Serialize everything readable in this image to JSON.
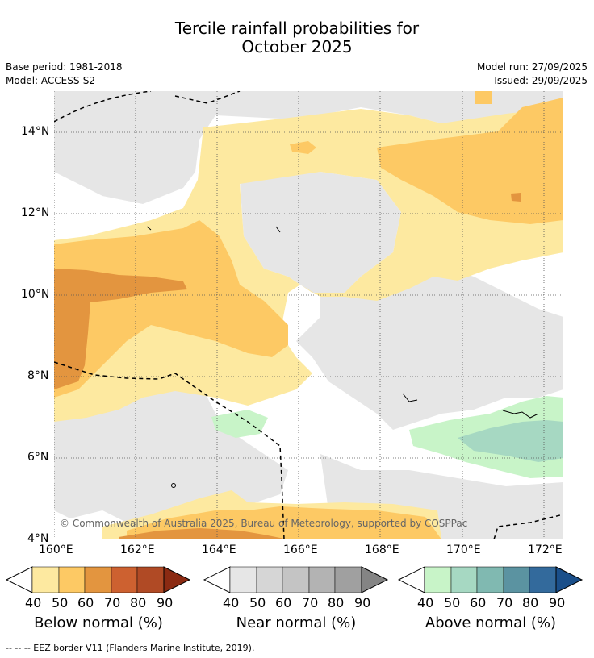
{
  "title": {
    "line1": "Tercile rainfall probabilities for",
    "line2": "October 2025"
  },
  "meta": {
    "base_period": "Base period: 1981-2018",
    "model": "Model: ACCESS-S2",
    "model_run": "Model run: 27/09/2025",
    "issued": "Issued: 29/09/2025"
  },
  "map": {
    "lat_labels": [
      "14°N",
      "12°N",
      "10°N",
      "8°N",
      "6°N",
      "4°N"
    ],
    "lon_labels": [
      "160°E",
      "162°E",
      "164°E",
      "166°E",
      "168°E",
      "170°E",
      "172°E"
    ],
    "copyright": "© Commonwealth of Australia 2025, Bureau of Meteorology, supported by COSPPac"
  },
  "legends": [
    {
      "title": "Below normal (%)",
      "ticks": [
        "40",
        "50",
        "60",
        "70",
        "80",
        "90"
      ],
      "colors": [
        "#fde9a0",
        "#fdc964",
        "#e3953f",
        "#cd6130",
        "#b04a25",
        "#8b2a12"
      ]
    },
    {
      "title": "Near normal (%)",
      "ticks": [
        "40",
        "50",
        "60",
        "70",
        "80",
        "90"
      ],
      "colors": [
        "#e6e6e6",
        "#d6d6d6",
        "#c4c4c4",
        "#b3b3b3",
        "#a0a0a0",
        "#848484"
      ]
    },
    {
      "title": "Above normal (%)",
      "ticks": [
        "40",
        "50",
        "60",
        "70",
        "80",
        "90"
      ],
      "colors": [
        "#c8f4c8",
        "#a6d8c2",
        "#80b9b1",
        "#5b93a1",
        "#336a9c",
        "#1a4f8a"
      ]
    }
  ],
  "footer": "--  --  -- EEZ border V11 (Flanders Marine Institute, 2019)."
}
